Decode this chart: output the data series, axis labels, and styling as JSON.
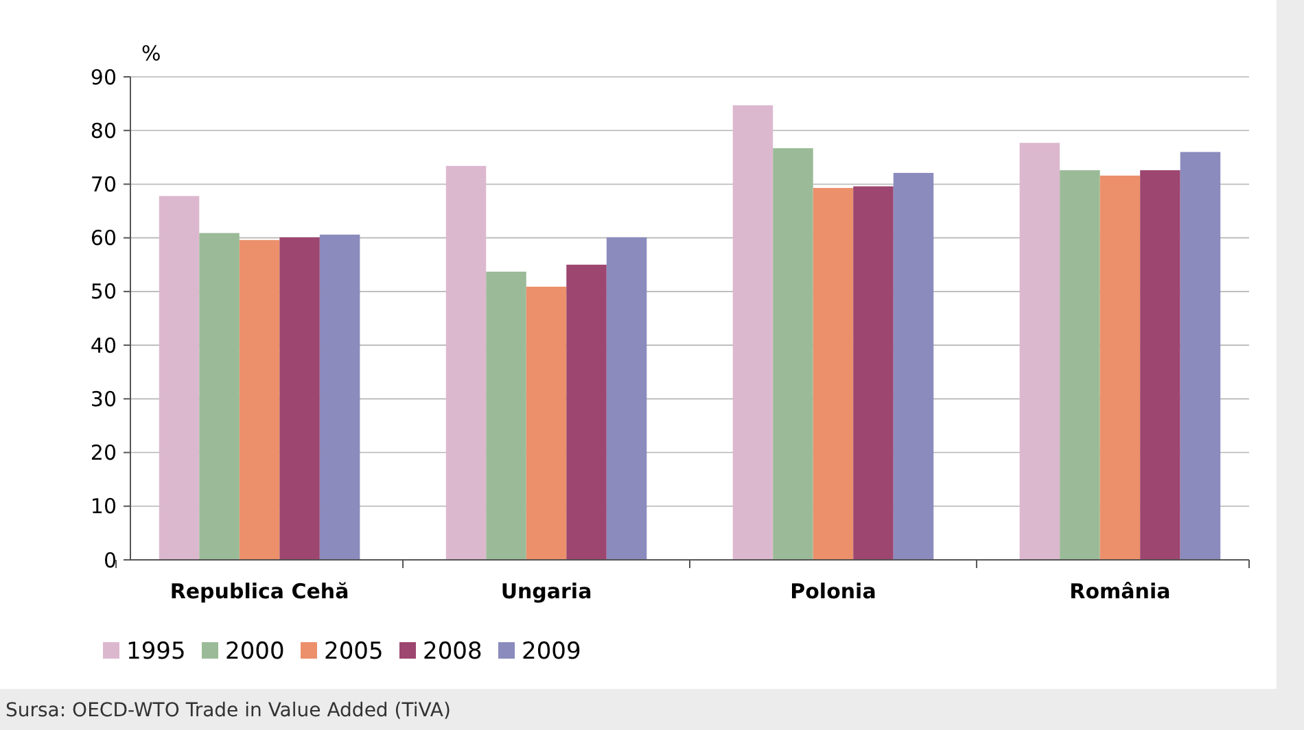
{
  "chart_data": {
    "type": "bar",
    "ylabel": "%",
    "categories": [
      "Republica Cehă",
      "Ungaria",
      "Polonia",
      "România"
    ],
    "series": [
      {
        "name": "1995",
        "color": "#dcb8cf",
        "values": [
          67.8,
          73.4,
          84.7,
          77.7
        ]
      },
      {
        "name": "2000",
        "color": "#9bbb98",
        "values": [
          60.9,
          53.7,
          76.7,
          72.6
        ]
      },
      {
        "name": "2005",
        "color": "#ec906b",
        "values": [
          59.6,
          50.9,
          69.3,
          71.6
        ]
      },
      {
        "name": "2008",
        "color": "#9c4670",
        "values": [
          60.1,
          55.0,
          69.6,
          72.6
        ]
      },
      {
        "name": "2009",
        "color": "#8b8bbd",
        "values": [
          60.6,
          60.1,
          72.1,
          76.0
        ]
      }
    ],
    "ylim": [
      0,
      90
    ],
    "yticks": [
      0,
      10,
      20,
      30,
      40,
      50,
      60,
      70,
      80,
      90
    ],
    "grid": "y",
    "legend": "bottom",
    "annotations": [
      "Sursa: OECD-WTO Trade in Value Added (TiVA)"
    ]
  }
}
